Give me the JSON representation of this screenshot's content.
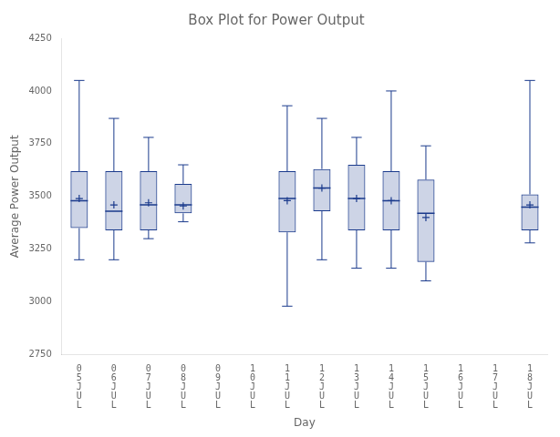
{
  "chart_data": {
    "type": "box",
    "title": "Box Plot for Power Output",
    "xlabel": "Day",
    "ylabel": "Average Power Output",
    "categories": [
      "0\n5\nJ\nU\nL",
      "0\n6\nJ\nU\nL",
      "0\n7\nJ\nU\nL",
      "0\n8\nJ\nU\nL",
      "0\n9\nJ\nU\nL",
      "1\n0\nJ\nU\nL",
      "1\n1\nJ\nU\nL",
      "1\n2\nJ\nU\nL",
      "1\n3\nJ\nU\nL",
      "1\n4\nJ\nU\nL",
      "1\n5\nJ\nU\nL",
      "1\n6\nJ\nU\nL",
      "1\n7\nJ\nU\nL",
      "1\n8\nJ\nU\nL"
    ],
    "whislo": [
      3200,
      3200,
      3300,
      3380,
      null,
      null,
      2980,
      3200,
      3160,
      3160,
      3100,
      null,
      null,
      3280
    ],
    "q1": [
      3350,
      3340,
      3340,
      3420,
      null,
      null,
      3330,
      3430,
      3340,
      3340,
      3190,
      null,
      null,
      3340
    ],
    "median": [
      3480,
      3430,
      3460,
      3460,
      null,
      null,
      3490,
      3540,
      3490,
      3480,
      3420,
      null,
      null,
      3450
    ],
    "q3": [
      3620,
      3620,
      3620,
      3560,
      null,
      null,
      3620,
      3630,
      3650,
      3620,
      3580,
      null,
      null,
      3510
    ],
    "whishi": [
      4050,
      3870,
      3780,
      3650,
      null,
      null,
      3930,
      3870,
      3780,
      4000,
      3740,
      null,
      null,
      4050
    ],
    "mean": [
      3490,
      3460,
      3470,
      3455,
      null,
      null,
      3480,
      3540,
      3490,
      3480,
      3400,
      null,
      null,
      3460
    ],
    "color": "#1a3a8c",
    "ylim": [
      2750,
      4250
    ],
    "yticks": [
      2750,
      3000,
      3250,
      3500,
      3750,
      4000,
      4250
    ],
    "grid": false
  }
}
